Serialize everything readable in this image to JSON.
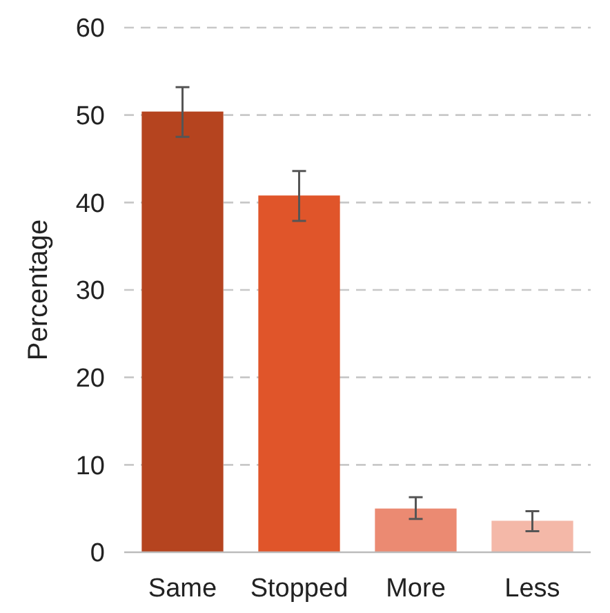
{
  "chart_data": {
    "type": "bar",
    "ylabel": "Percentage",
    "categories": [
      "Same",
      "Stopped",
      "More",
      "Less"
    ],
    "values": [
      50.4,
      40.8,
      5.0,
      3.6
    ],
    "colors": [
      "#b5441f",
      "#e0552a",
      "#eb8a72",
      "#f4b8a8"
    ],
    "errors": [
      [
        47.5,
        53.2
      ],
      [
        37.9,
        43.6
      ],
      [
        3.8,
        6.3
      ],
      [
        2.4,
        4.7
      ]
    ],
    "ylim": [
      0,
      60
    ],
    "yticks": [
      0,
      10,
      20,
      30,
      40,
      50,
      60
    ],
    "grid": "y"
  }
}
